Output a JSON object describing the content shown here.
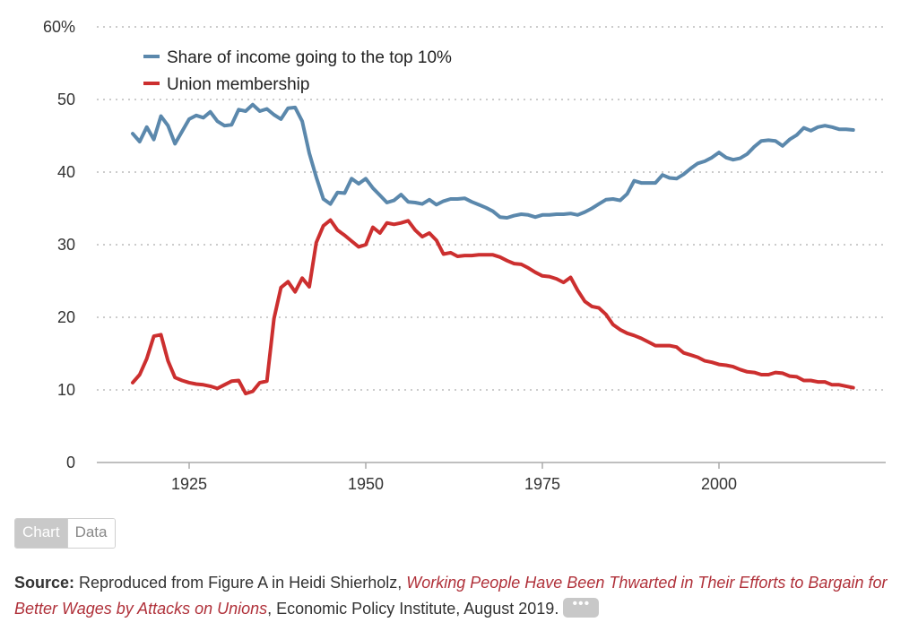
{
  "chart_data": {
    "type": "line",
    "ylim": [
      0,
      60
    ],
    "xlim": [
      1915,
      2020
    ],
    "y_ticks": [
      0,
      10,
      20,
      30,
      40,
      50,
      60
    ],
    "y_tick_labels": [
      "0",
      "10",
      "20",
      "30",
      "40",
      "50",
      "60%"
    ],
    "x_ticks": [
      1925,
      1950,
      1975,
      2000
    ],
    "x_tick_labels": [
      "1925",
      "1950",
      "1975",
      "2000"
    ],
    "grid": "horizontal dotted",
    "legend_position": "top-left",
    "series": [
      {
        "name": "Share of income going to the top 10%",
        "color": "#5b88ac",
        "x": [
          1917,
          1918,
          1919,
          1920,
          1921,
          1922,
          1923,
          1924,
          1925,
          1926,
          1927,
          1928,
          1929,
          1930,
          1931,
          1932,
          1933,
          1934,
          1935,
          1936,
          1937,
          1938,
          1939,
          1940,
          1941,
          1942,
          1943,
          1944,
          1945,
          1946,
          1947,
          1948,
          1949,
          1950,
          1951,
          1952,
          1953,
          1954,
          1955,
          1956,
          1957,
          1958,
          1959,
          1960,
          1961,
          1962,
          1963,
          1964,
          1965,
          1966,
          1967,
          1968,
          1969,
          1970,
          1971,
          1972,
          1973,
          1974,
          1975,
          1976,
          1977,
          1978,
          1979,
          1980,
          1981,
          1982,
          1983,
          1984,
          1985,
          1986,
          1987,
          1988,
          1989,
          1990,
          1991,
          1992,
          1993,
          1994,
          1995,
          1996,
          1997,
          1998,
          1999,
          2000,
          2001,
          2002,
          2003,
          2004,
          2005,
          2006,
          2007,
          2008,
          2009,
          2010,
          2011,
          2012,
          2013,
          2014,
          2015,
          2016,
          2017,
          2018,
          2019
        ],
        "values": [
          45.3,
          44.2,
          46.2,
          44.5,
          47.7,
          46.4,
          43.9,
          45.6,
          47.3,
          47.8,
          47.5,
          48.3,
          47.0,
          46.4,
          46.5,
          48.6,
          48.4,
          49.3,
          48.4,
          48.7,
          47.9,
          47.3,
          48.8,
          48.9,
          47.0,
          42.6,
          39.3,
          36.3,
          35.6,
          37.2,
          37.1,
          39.1,
          38.4,
          39.1,
          37.8,
          36.8,
          35.8,
          36.1,
          36.9,
          35.9,
          35.8,
          35.6,
          36.2,
          35.5,
          36.0,
          36.3,
          36.3,
          36.4,
          35.9,
          35.5,
          35.1,
          34.6,
          33.8,
          33.7,
          34.0,
          34.2,
          34.1,
          33.8,
          34.1,
          34.1,
          34.2,
          34.2,
          34.3,
          34.1,
          34.5,
          35.0,
          35.6,
          36.2,
          36.3,
          36.1,
          37.0,
          38.8,
          38.5,
          38.5,
          38.5,
          39.6,
          39.2,
          39.1,
          39.7,
          40.5,
          41.2,
          41.5,
          42.0,
          42.7,
          42.0,
          41.7,
          41.9,
          42.5,
          43.5,
          44.3,
          44.4,
          44.3,
          43.6,
          44.5,
          45.1,
          46.1,
          45.7,
          46.2,
          46.4,
          46.2,
          45.9,
          45.9,
          45.8
        ]
      },
      {
        "name": "Union membership",
        "color": "#cc2f2f",
        "x": [
          1917,
          1918,
          1919,
          1920,
          1921,
          1922,
          1923,
          1924,
          1925,
          1926,
          1927,
          1928,
          1929,
          1930,
          1931,
          1932,
          1933,
          1934,
          1935,
          1936,
          1937,
          1938,
          1939,
          1940,
          1941,
          1942,
          1943,
          1944,
          1945,
          1946,
          1947,
          1948,
          1949,
          1950,
          1951,
          1952,
          1953,
          1954,
          1955,
          1956,
          1957,
          1958,
          1959,
          1960,
          1961,
          1962,
          1963,
          1964,
          1965,
          1966,
          1967,
          1968,
          1969,
          1970,
          1971,
          1972,
          1973,
          1974,
          1975,
          1976,
          1977,
          1978,
          1979,
          1980,
          1981,
          1982,
          1983,
          1984,
          1985,
          1986,
          1987,
          1988,
          1989,
          1990,
          1991,
          1992,
          1993,
          1994,
          1995,
          1996,
          1997,
          1998,
          1999,
          2000,
          2001,
          2002,
          2003,
          2004,
          2005,
          2006,
          2007,
          2008,
          2009,
          2010,
          2011,
          2012,
          2013,
          2014,
          2015,
          2016,
          2017,
          2018,
          2019
        ],
        "values": [
          11.0,
          12.1,
          14.3,
          17.4,
          17.6,
          14.0,
          11.7,
          11.3,
          11.0,
          10.8,
          10.7,
          10.5,
          10.2,
          10.7,
          11.2,
          11.3,
          9.5,
          9.8,
          11.0,
          11.2,
          19.8,
          24.1,
          24.9,
          23.5,
          25.4,
          24.2,
          30.3,
          32.6,
          33.4,
          32.0,
          31.3,
          30.5,
          29.7,
          30.0,
          32.4,
          31.6,
          33.0,
          32.8,
          33.0,
          33.3,
          32.0,
          31.1,
          31.6,
          30.6,
          28.7,
          28.9,
          28.4,
          28.5,
          28.5,
          28.6,
          28.6,
          28.6,
          28.3,
          27.8,
          27.4,
          27.3,
          26.8,
          26.2,
          25.7,
          25.6,
          25.3,
          24.8,
          25.5,
          23.7,
          22.2,
          21.5,
          21.3,
          20.4,
          19.0,
          18.3,
          17.8,
          17.5,
          17.1,
          16.6,
          16.1,
          16.1,
          16.1,
          15.9,
          15.1,
          14.8,
          14.5,
          14.0,
          13.8,
          13.5,
          13.4,
          13.2,
          12.8,
          12.5,
          12.4,
          12.1,
          12.1,
          12.4,
          12.3,
          11.9,
          11.8,
          11.3,
          11.3,
          11.1,
          11.1,
          10.7,
          10.7,
          10.5,
          10.3
        ]
      }
    ]
  },
  "legend": {
    "item1": "Share of income going to the top 10%",
    "item2": "Union membership"
  },
  "toggle": {
    "chart_label": "Chart",
    "data_label": "Data"
  },
  "source": {
    "prefix": "Source:",
    "text1": " Reproduced from Figure A in Heidi Shierholz, ",
    "title": "Working People Have Been Thwarted in Their Efforts to Bargain for Better Wages by Attacks on Unions",
    "text2": ", Economic Policy Institute, August 2019.",
    "more_label": "•••"
  }
}
